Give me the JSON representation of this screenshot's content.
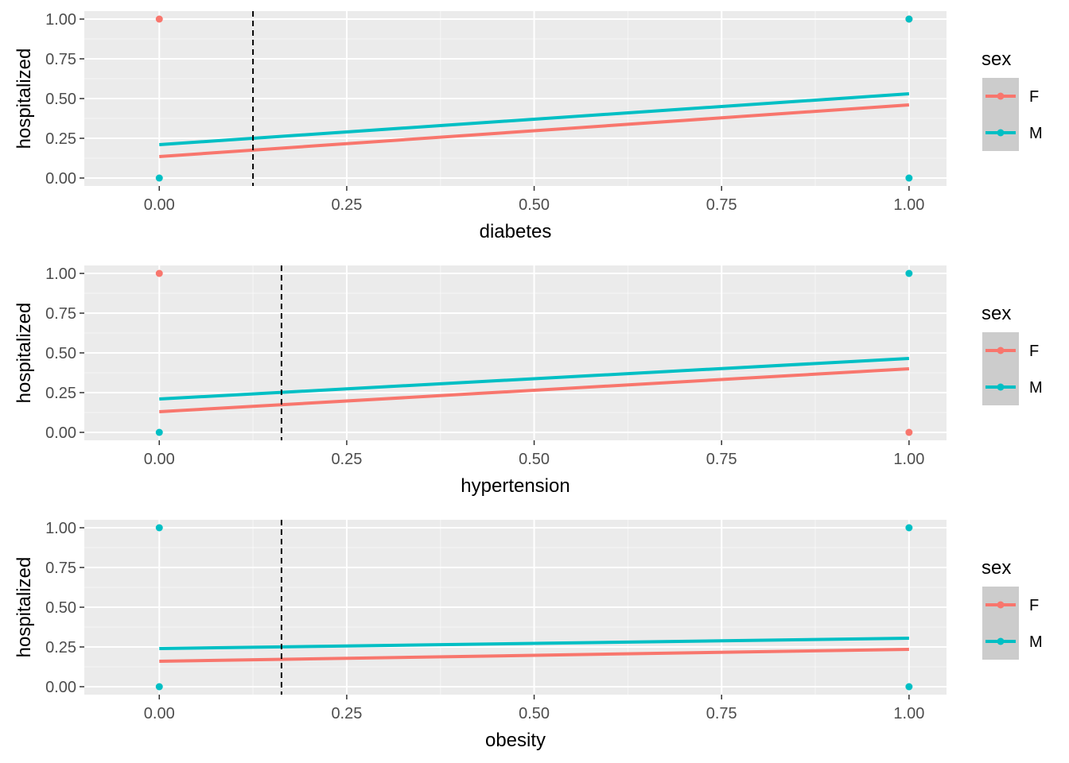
{
  "legend": {
    "title": "sex",
    "entries": [
      {
        "label": "F",
        "color": "#F8766D"
      },
      {
        "label": "M",
        "color": "#00BFC4"
      }
    ]
  },
  "colors": {
    "panel_background": "#EBEBEB",
    "grid_major": "#FFFFFF",
    "legend_key_background": "#CCCCCC",
    "vline": "#000000"
  },
  "chart_data": [
    {
      "type": "line",
      "xlabel": "diabetes",
      "ylabel": "hospitalized",
      "xlim": [
        -0.1,
        1.05
      ],
      "ylim": [
        -0.05,
        1.05
      ],
      "x_ticks": [
        0,
        0.25,
        0.5,
        0.75,
        1
      ],
      "x_tick_labels": [
        "0.00",
        "0.25",
        "0.50",
        "0.75",
        "1.00"
      ],
      "y_ticks": [
        0,
        0.25,
        0.5,
        0.75,
        1
      ],
      "y_tick_labels": [
        "0.00",
        "0.25",
        "0.50",
        "0.75",
        "1.00"
      ],
      "grid": true,
      "legend_position": "right",
      "vline_x": 0.125,
      "series": [
        {
          "name": "F",
          "line": [
            [
              0,
              0.135
            ],
            [
              1,
              0.46
            ]
          ],
          "points": [
            [
              0,
              1
            ],
            [
              1,
              1
            ]
          ]
        },
        {
          "name": "M",
          "line": [
            [
              0,
              0.21
            ],
            [
              1,
              0.53
            ]
          ],
          "points": [
            [
              0,
              0
            ],
            [
              1,
              1
            ],
            [
              1,
              0
            ]
          ]
        }
      ]
    },
    {
      "type": "line",
      "xlabel": "hypertension",
      "ylabel": "hospitalized",
      "xlim": [
        -0.1,
        1.05
      ],
      "ylim": [
        -0.05,
        1.05
      ],
      "x_ticks": [
        0,
        0.25,
        0.5,
        0.75,
        1
      ],
      "x_tick_labels": [
        "0.00",
        "0.25",
        "0.50",
        "0.75",
        "1.00"
      ],
      "y_ticks": [
        0,
        0.25,
        0.5,
        0.75,
        1
      ],
      "y_tick_labels": [
        "0.00",
        "0.25",
        "0.50",
        "0.75",
        "1.00"
      ],
      "grid": true,
      "legend_position": "right",
      "vline_x": 0.163,
      "series": [
        {
          "name": "F",
          "line": [
            [
              0,
              0.13
            ],
            [
              1,
              0.4
            ]
          ],
          "points": [
            [
              0,
              1
            ],
            [
              1,
              0
            ]
          ]
        },
        {
          "name": "M",
          "line": [
            [
              0,
              0.21
            ],
            [
              1,
              0.465
            ]
          ],
          "points": [
            [
              0,
              0
            ],
            [
              1,
              1
            ]
          ]
        }
      ]
    },
    {
      "type": "line",
      "xlabel": "obesity",
      "ylabel": "hospitalized",
      "xlim": [
        -0.1,
        1.05
      ],
      "ylim": [
        -0.05,
        1.05
      ],
      "x_ticks": [
        0,
        0.25,
        0.5,
        0.75,
        1
      ],
      "x_tick_labels": [
        "0.00",
        "0.25",
        "0.50",
        "0.75",
        "1.00"
      ],
      "y_ticks": [
        0,
        0.25,
        0.5,
        0.75,
        1
      ],
      "y_tick_labels": [
        "0.00",
        "0.25",
        "0.50",
        "0.75",
        "1.00"
      ],
      "grid": true,
      "legend_position": "right",
      "vline_x": 0.163,
      "series": [
        {
          "name": "F",
          "line": [
            [
              0,
              0.16
            ],
            [
              1,
              0.235
            ]
          ],
          "points": []
        },
        {
          "name": "M",
          "line": [
            [
              0,
              0.24
            ],
            [
              1,
              0.305
            ]
          ],
          "points": [
            [
              0,
              1
            ],
            [
              0,
              0
            ],
            [
              1,
              1
            ],
            [
              1,
              0
            ]
          ]
        }
      ]
    }
  ]
}
